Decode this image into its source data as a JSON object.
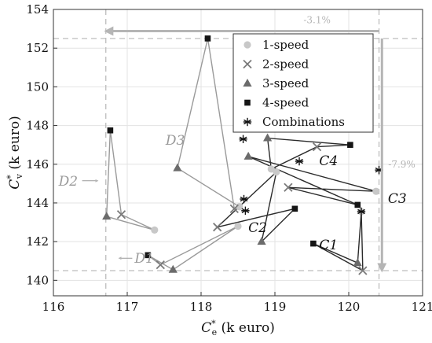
{
  "chart_data": {
    "type": "scatter",
    "xlabel": "C_e^* (k euro)",
    "ylabel": "C_v^* (k euro)",
    "xlim": [
      116,
      121
    ],
    "ylim": [
      139.2,
      154
    ],
    "xticks": [
      116,
      117,
      118,
      119,
      120,
      121
    ],
    "yticks": [
      140,
      142,
      144,
      146,
      148,
      150,
      152,
      154
    ],
    "grid": true,
    "legend_position": "top-right",
    "legend": [
      {
        "label": "1-speed",
        "marker": "circle"
      },
      {
        "label": "2-speed",
        "marker": "x"
      },
      {
        "label": "3-speed",
        "marker": "triangle"
      },
      {
        "label": "4-speed",
        "marker": "square"
      },
      {
        "label": "Combinations",
        "marker": "asterisk"
      }
    ],
    "groups": [
      {
        "label": "D1",
        "color": "#9a9a9a",
        "points": [
          {
            "marker": "circle",
            "x": 118.5,
            "y": 142.8
          },
          {
            "marker": "x",
            "x": 117.45,
            "y": 140.8
          },
          {
            "marker": "square",
            "x": 117.28,
            "y": 141.3
          },
          {
            "marker": "triangle",
            "x": 117.62,
            "y": 140.55
          }
        ]
      },
      {
        "label": "D2",
        "color": "#9a9a9a",
        "points": [
          {
            "marker": "circle",
            "x": 117.37,
            "y": 142.6
          },
          {
            "marker": "x",
            "x": 116.92,
            "y": 143.4
          },
          {
            "marker": "square",
            "x": 116.77,
            "y": 147.75
          },
          {
            "marker": "triangle",
            "x": 116.72,
            "y": 143.3
          }
        ]
      },
      {
        "label": "D3",
        "color": "#9a9a9a",
        "points": [
          {
            "marker": "circle",
            "x": 118.52,
            "y": 143.8
          },
          {
            "marker": "x",
            "x": 118.45,
            "y": 143.7
          },
          {
            "marker": "square",
            "x": 118.09,
            "y": 152.5
          },
          {
            "marker": "triangle",
            "x": 117.68,
            "y": 145.8
          }
        ]
      },
      {
        "label": "C1",
        "color": "#2b2b2b",
        "points": [
          {
            "marker": "circle",
            "x": 120.17,
            "y": 143.55
          },
          {
            "marker": "x",
            "x": 120.19,
            "y": 140.5
          },
          {
            "marker": "square",
            "x": 119.52,
            "y": 141.9
          },
          {
            "marker": "triangle",
            "x": 120.12,
            "y": 140.9
          }
        ]
      },
      {
        "label": "C2",
        "color": "#2b2b2b",
        "points": [
          {
            "marker": "circle",
            "x": 119.02,
            "y": 145.6
          },
          {
            "marker": "x",
            "x": 118.22,
            "y": 142.75
          },
          {
            "marker": "square",
            "x": 119.27,
            "y": 143.7
          },
          {
            "marker": "triangle",
            "x": 118.82,
            "y": 142.0
          }
        ]
      },
      {
        "label": "C3",
        "color": "#2b2b2b",
        "points": [
          {
            "marker": "circle",
            "x": 120.37,
            "y": 144.6
          },
          {
            "marker": "x",
            "x": 119.18,
            "y": 144.8
          },
          {
            "marker": "square",
            "x": 120.12,
            "y": 143.9
          },
          {
            "marker": "triangle",
            "x": 118.64,
            "y": 146.4
          }
        ]
      },
      {
        "label": "C4",
        "color": "#2b2b2b",
        "points": [
          {
            "marker": "circle",
            "x": 118.95,
            "y": 145.75
          },
          {
            "marker": "x",
            "x": 119.57,
            "y": 146.9
          },
          {
            "marker": "square",
            "x": 120.02,
            "y": 147.0
          },
          {
            "marker": "triangle",
            "x": 118.9,
            "y": 147.35
          }
        ]
      }
    ],
    "combinations": [
      {
        "x": 118.57,
        "y": 147.3
      },
      {
        "x": 118.58,
        "y": 144.2
      },
      {
        "x": 118.6,
        "y": 143.6
      },
      {
        "x": 119.33,
        "y": 146.15
      },
      {
        "x": 120.17,
        "y": 143.55
      },
      {
        "x": 120.41,
        "y": 145.7
      }
    ],
    "reference_lines": {
      "vertical": [
        116.71,
        120.41
      ],
      "horizontal": [
        152.5,
        140.5
      ]
    },
    "arrows": [
      {
        "label": "-3.1%",
        "from": [
          120.41,
          152.88
        ],
        "to": [
          116.71,
          152.88
        ]
      },
      {
        "label": "-7.9%",
        "from": [
          120.45,
          152.5
        ],
        "to": [
          120.45,
          140.5
        ]
      }
    ],
    "annotations": [
      {
        "text": "D1",
        "x": 117.1,
        "y": 140.9,
        "color": "#9a9a9a"
      },
      {
        "text": "D2",
        "x": 116.07,
        "y": 144.9,
        "color": "#9a9a9a"
      },
      {
        "text": "D3",
        "x": 117.52,
        "y": 147.0,
        "color": "#9a9a9a"
      },
      {
        "text": "C1",
        "x": 119.6,
        "y": 141.6,
        "color": "#111111"
      },
      {
        "text": "C2",
        "x": 118.64,
        "y": 142.5,
        "color": "#111111"
      },
      {
        "text": "C3",
        "x": 120.53,
        "y": 144.0,
        "color": "#111111"
      },
      {
        "text": "C4",
        "x": 119.6,
        "y": 145.95,
        "color": "#111111"
      }
    ]
  }
}
